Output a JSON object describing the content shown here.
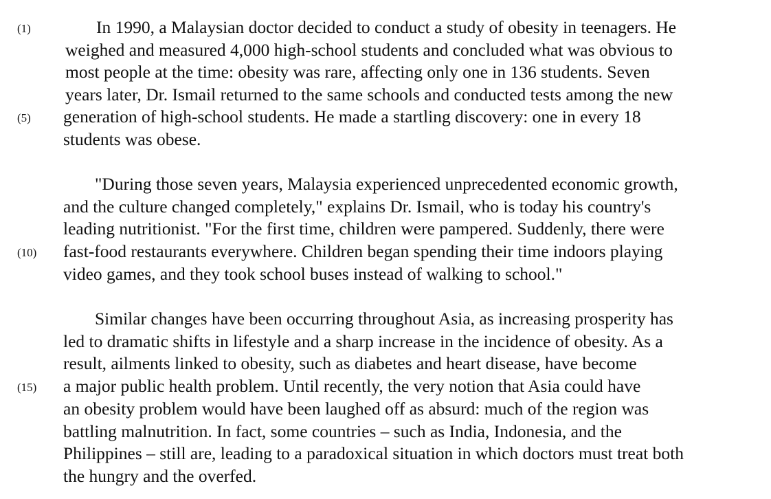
{
  "passage": {
    "line_numbers": {
      "l1": "(1)",
      "l5": "(5)",
      "l10": "(10)",
      "l15": "(15)"
    },
    "paragraph1": [
      "In 1990, a Malaysian doctor decided to conduct a study of obesity in teenagers.  He",
      "weighed and measured 4,000 high-school students and concluded what was obvious to",
      "most people at the time:  obesity was rare, affecting only one in 136 students.  Seven",
      "years later, Dr. Ismail returned to the same schools and conducted tests among the new",
      "generation of high-school students.  He made a startling discovery:  one in every 18",
      "students was obese."
    ],
    "paragraph2": [
      "\"During those seven years, Malaysia experienced unprecedented economic growth,",
      "and the culture changed completely,\" explains Dr. Ismail, who is today his country's",
      "leading nutritionist.  \"For the first time, children were pampered.  Suddenly, there were",
      "fast-food restaurants everywhere.  Children began spending their time indoors playing",
      "video games, and they took school buses instead of walking to school.\""
    ],
    "paragraph3": [
      "Similar changes have been occurring throughout Asia, as increasing prosperity has",
      "led to dramatic shifts in lifestyle and a sharp increase in the incidence of obesity.  As a",
      "result, ailments linked to obesity, such as diabetes and heart disease, have become",
      "a major public health problem.  Until recently, the very notion that Asia could have",
      "an obesity problem would have been laughed off as absurd:  much of the region was",
      "battling malnutrition.  In fact, some countries – such as India, Indonesia, and the",
      "Philippines – still are, leading to a paradoxical situation in which doctors must treat both",
      "the hungry and the overfed."
    ]
  }
}
